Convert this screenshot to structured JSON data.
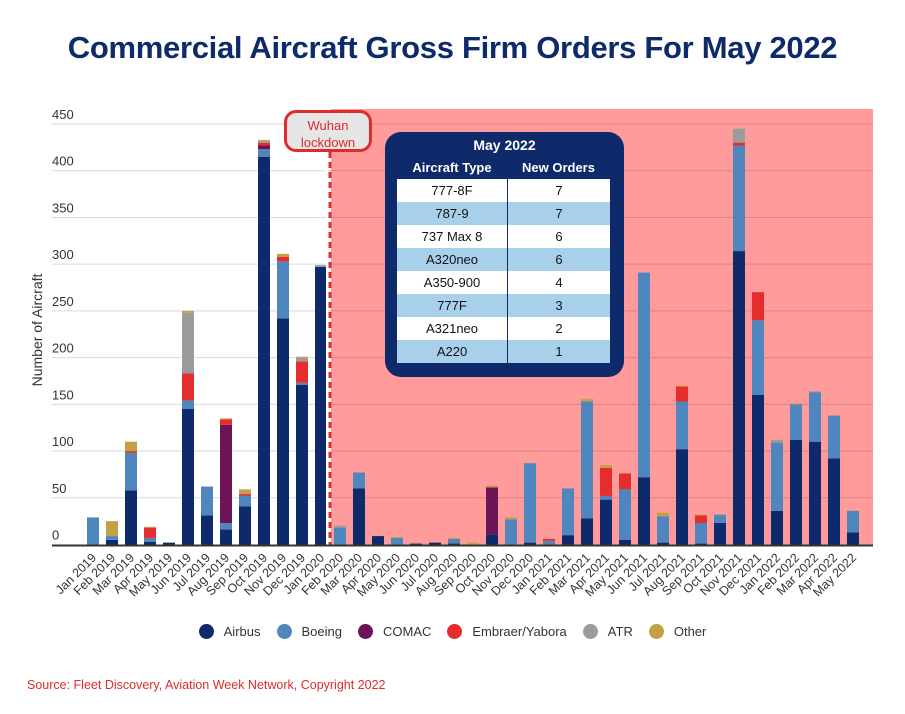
{
  "title": "Commercial Aircraft Gross Firm Orders For May 2022",
  "annotation": {
    "callout_line1": "Wuhan",
    "callout_line2": "lockdown",
    "at_category": "Feb 2020"
  },
  "inset_table": {
    "title": "May 2022",
    "headers": [
      "Aircraft Type",
      "New Orders"
    ],
    "rows": [
      {
        "type": "777-8F",
        "orders": "7"
      },
      {
        "type": "787-9",
        "orders": "7"
      },
      {
        "type": "737 Max 8",
        "orders": "6"
      },
      {
        "type": "A320neo",
        "orders": "6"
      },
      {
        "type": "A350-900",
        "orders": "4"
      },
      {
        "type": "777F",
        "orders": "3"
      },
      {
        "type": "A321neo",
        "orders": "2"
      },
      {
        "type": "A220",
        "orders": "1"
      }
    ]
  },
  "colors": {
    "Airbus": "#0e2a6b",
    "Boeing": "#4e86bd",
    "COMAC": "#6d1457",
    "Embraer/Yabora": "#e52d2d",
    "ATR": "#9b9b9b",
    "Other": "#c2a144",
    "post_lockdown_bg": "#ff9b9b",
    "title": "#0e2a6b",
    "accent_red": "#e02b2b"
  },
  "source": "Source: Fleet Discovery, Aviation Week Network, Copyright 2022",
  "chart_data": {
    "type": "bar",
    "stacked": true,
    "title": "Commercial Aircraft Gross Firm Orders For May 2022",
    "xlabel": "",
    "ylabel": "Number of Aircraft",
    "ylim": [
      0,
      450
    ],
    "yticks": [
      0,
      50,
      100,
      150,
      200,
      250,
      300,
      350,
      400,
      450
    ],
    "grid": true,
    "legend_position": "bottom",
    "categories": [
      "Jan 2019",
      "Feb 2019",
      "Mar 2019",
      "Apr 2019",
      "May 2019",
      "Jun 2019",
      "Jul 2019",
      "Aug 2019",
      "Sep 2019",
      "Oct 2019",
      "Nov 2019",
      "Dec 2019",
      "Jan 2020",
      "Feb 2020",
      "Mar 2020",
      "Apr 2020",
      "May 2020",
      "Jun 2020",
      "Jul 2020",
      "Aug 2020",
      "Sep 2020",
      "Oct 2020",
      "Nov 2020",
      "Dec 2020",
      "Jan 2021",
      "Feb 2021",
      "Mar 2021",
      "Apr 2021",
      "May 2021",
      "Jun 2021",
      "Jul 2021",
      "Aug 2021",
      "Sep 2021",
      "Oct 2021",
      "Nov 2021",
      "Dec 2021",
      "Jan 2022",
      "Feb 2022",
      "Mar 2022",
      "Apr 2022",
      "May 2022"
    ],
    "series": [
      {
        "name": "Airbus",
        "values": [
          0,
          5,
          58,
          3,
          2,
          145,
          31,
          16,
          41,
          415,
          242,
          171,
          297,
          0,
          60,
          9,
          0,
          1,
          2,
          1,
          0,
          11,
          0,
          2,
          0,
          10,
          28,
          48,
          5,
          72,
          2,
          102,
          1,
          23,
          314,
          160,
          36,
          112,
          110,
          92,
          13
        ]
      },
      {
        "name": "Boeing",
        "values": [
          29,
          4,
          40,
          4,
          0,
          9,
          31,
          7,
          11,
          8,
          61,
          2,
          0,
          18,
          17,
          0,
          7,
          0,
          0,
          5,
          0,
          0,
          27,
          85,
          4,
          50,
          125,
          4,
          54,
          219,
          28,
          51,
          22,
          9,
          113,
          80,
          73,
          38,
          53,
          46,
          23
        ]
      },
      {
        "name": "COMAC",
        "values": [
          0,
          0,
          0,
          0,
          0,
          0,
          0,
          105,
          0,
          4,
          0,
          0,
          0,
          0,
          0,
          0,
          0,
          0,
          0,
          0,
          0,
          50,
          0,
          0,
          0,
          0,
          0,
          0,
          0,
          0,
          0,
          0,
          0,
          0,
          0,
          0,
          0,
          0,
          0,
          0,
          0
        ]
      },
      {
        "name": "Embraer/Yabora",
        "values": [
          0,
          0,
          2,
          11,
          0,
          29,
          0,
          6,
          2,
          3,
          5,
          23,
          0,
          0,
          0,
          0,
          0,
          0,
          0,
          0,
          0,
          0,
          0,
          0,
          2,
          0,
          0,
          30,
          17,
          0,
          0,
          16,
          8,
          0,
          3,
          30,
          0,
          0,
          0,
          0,
          0
        ]
      },
      {
        "name": "ATR",
        "values": [
          0,
          0,
          0,
          0,
          0,
          65,
          0,
          0,
          1,
          2,
          0,
          4,
          2,
          2,
          0,
          0,
          0,
          0,
          0,
          0,
          0,
          0,
          0,
          0,
          0,
          0,
          0,
          0,
          0,
          0,
          0,
          0,
          0,
          0,
          15,
          0,
          3,
          0,
          1,
          0,
          0
        ]
      },
      {
        "name": "Other",
        "values": [
          0,
          16,
          10,
          1,
          0,
          2,
          0,
          1,
          4,
          1,
          3,
          1,
          0,
          0,
          0,
          0,
          1,
          0,
          0,
          1,
          2,
          2,
          2,
          0,
          0,
          0,
          3,
          3,
          0,
          0,
          4,
          1,
          1,
          0,
          0,
          0,
          0,
          1,
          0,
          0,
          0
        ]
      }
    ]
  }
}
